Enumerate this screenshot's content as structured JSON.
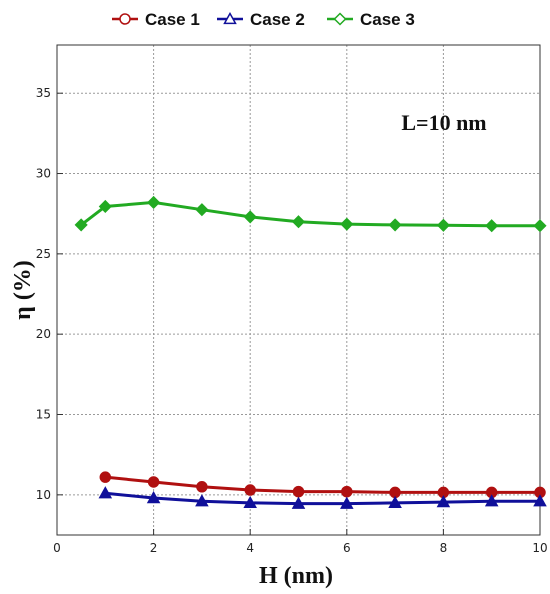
{
  "chart_data": {
    "type": "line",
    "xlabel": "H (nm)",
    "ylabel": "η (%)",
    "annotation": "L=10 nm",
    "xlim": [
      0,
      10
    ],
    "ylim": [
      7.5,
      38
    ],
    "xticks": [
      0,
      2,
      4,
      6,
      8,
      10
    ],
    "yticks": [
      10,
      15,
      20,
      25,
      30,
      35
    ],
    "grid": true,
    "legend_position": "top",
    "series": [
      {
        "name": "Case 1",
        "color": "#b01010",
        "marker": "circle",
        "x": [
          1,
          2,
          3,
          4,
          5,
          6,
          7,
          8,
          9,
          10
        ],
        "y": [
          11.1,
          10.8,
          10.5,
          10.3,
          10.2,
          10.2,
          10.15,
          10.15,
          10.15,
          10.15
        ]
      },
      {
        "name": "Case 2",
        "color": "#10109a",
        "marker": "triangle",
        "x": [
          1,
          2,
          3,
          4,
          5,
          6,
          7,
          8,
          9,
          10
        ],
        "y": [
          10.1,
          9.8,
          9.6,
          9.5,
          9.45,
          9.45,
          9.5,
          9.55,
          9.6,
          9.6
        ]
      },
      {
        "name": "Case 3",
        "color": "#22aa22",
        "marker": "diamond",
        "x": [
          0.5,
          1,
          2,
          3,
          4,
          5,
          6,
          7,
          8,
          9,
          10
        ],
        "y": [
          26.8,
          27.95,
          28.2,
          27.75,
          27.3,
          27.0,
          26.85,
          26.8,
          26.78,
          26.75,
          26.75
        ]
      }
    ]
  }
}
